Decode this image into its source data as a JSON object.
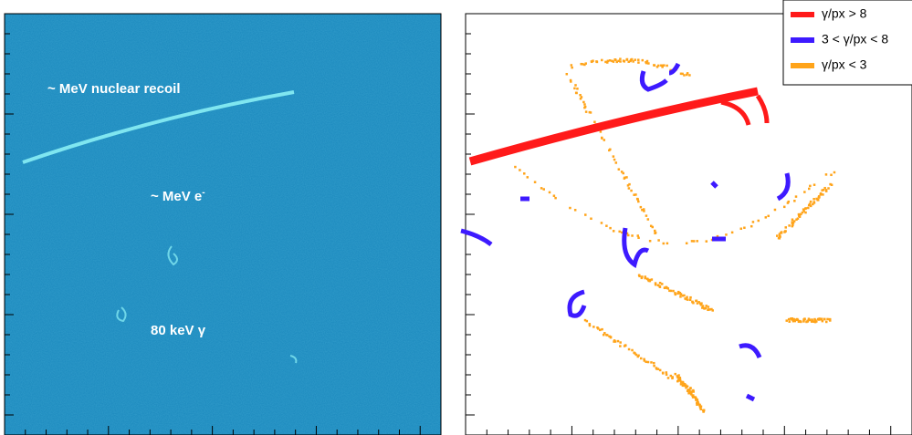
{
  "left_panel": {
    "annotations": [
      "~ MeV nuclear recoil",
      "~ MeV e",
      "80 keV γ"
    ],
    "superscript": "-"
  },
  "right_panel": {
    "legend": [
      {
        "name": "γ/px > 8",
        "color": "#ff1a1a"
      },
      {
        "name": "3 < γ/px < 8",
        "color": "#3d1aff"
      },
      {
        "name": "γ/px < 3",
        "color": "#ffa41a"
      }
    ]
  }
}
